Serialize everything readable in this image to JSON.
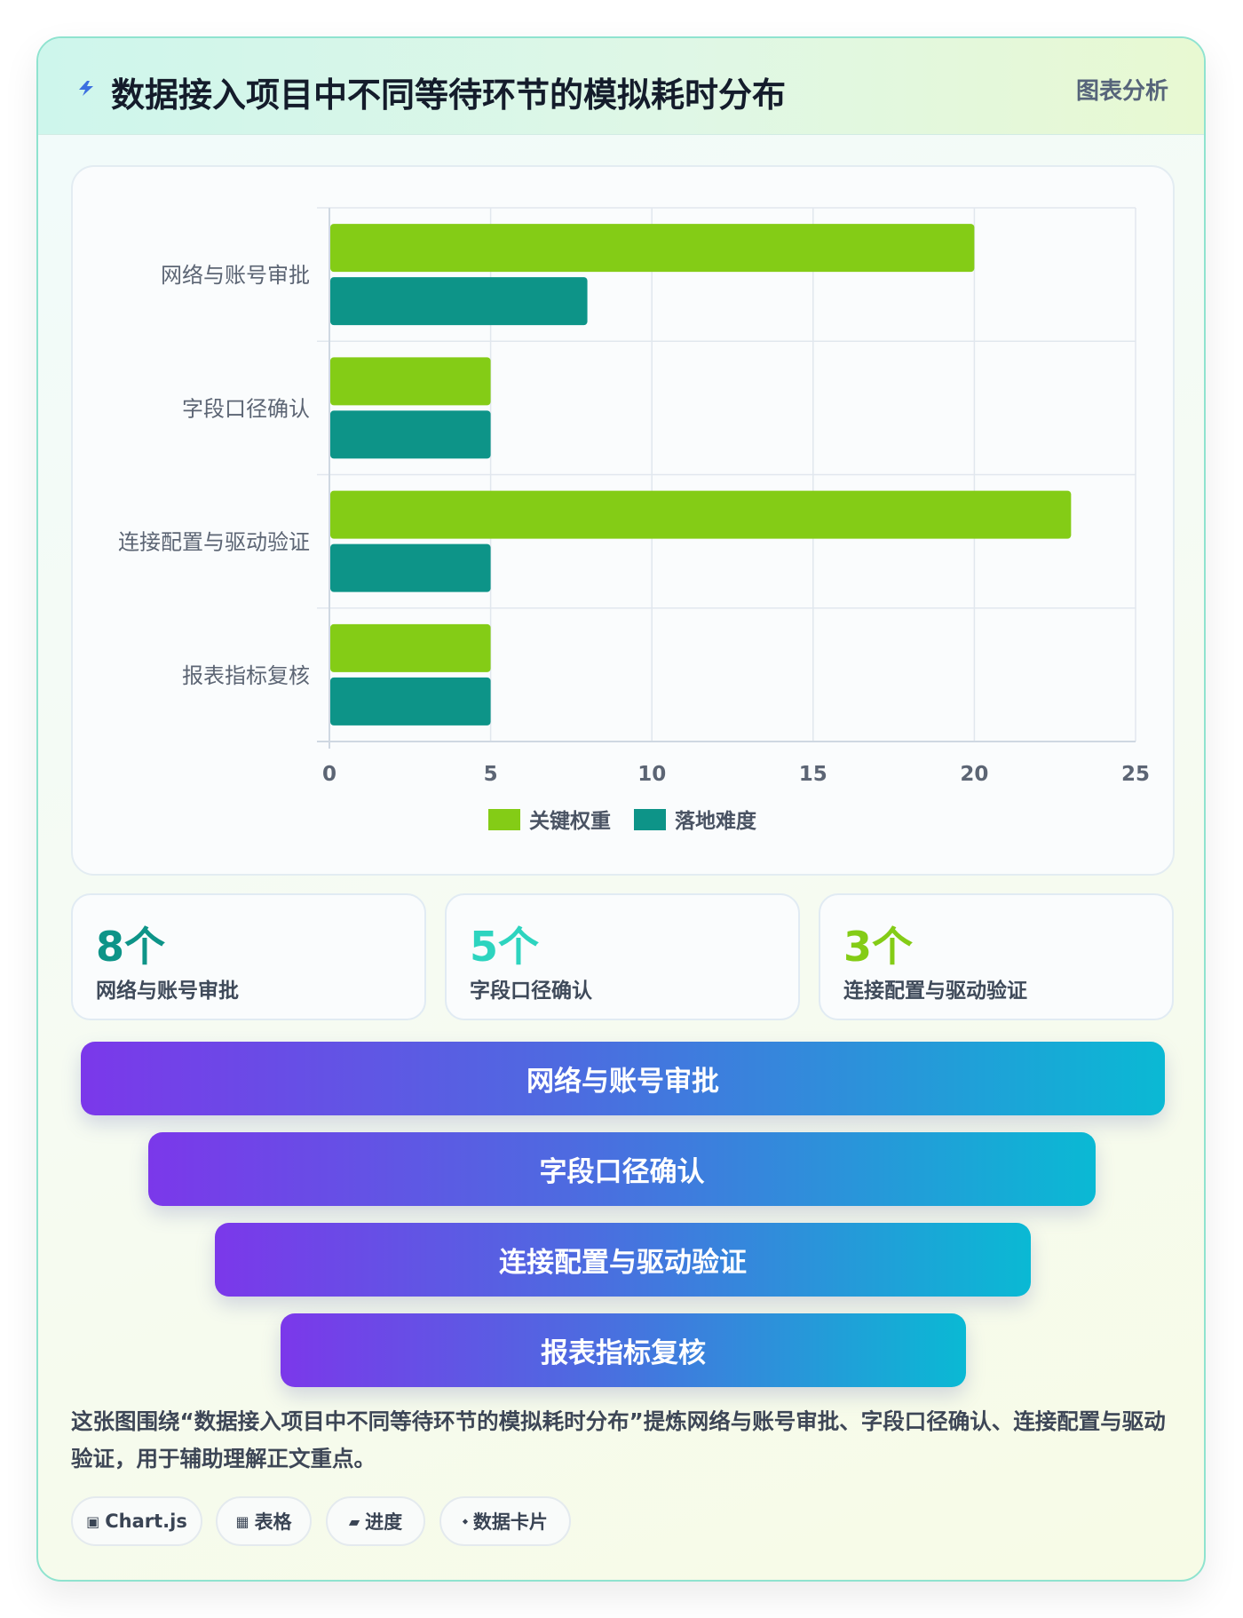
{
  "header": {
    "title": "数据接入项目中不同等待环节的模拟耗时分布",
    "tag": "图表分析"
  },
  "chart_data": {
    "type": "bar",
    "orientation": "horizontal",
    "categories": [
      "网络与账号审批",
      "字段口径确认",
      "连接配置与驱动验证",
      "报表指标复核"
    ],
    "series": [
      {
        "name": "关键权重",
        "values": [
          20,
          5,
          23,
          5
        ],
        "color": "#84cc16"
      },
      {
        "name": "落地难度",
        "values": [
          8,
          5,
          5,
          5
        ],
        "color": "#0d9488"
      }
    ],
    "xlim": [
      0,
      25
    ],
    "x_ticks": [
      "0",
      "5",
      "10",
      "15",
      "20",
      "25"
    ],
    "grid": true,
    "legend": "bottom"
  },
  "stats": [
    {
      "value": "8个",
      "label": "网络与账号审批",
      "color": "#0d9488"
    },
    {
      "value": "5个",
      "label": "字段口径确认",
      "color": "#2dd4bf"
    },
    {
      "value": "3个",
      "label": "连接配置与驱动验证",
      "color": "#84cc16"
    }
  ],
  "funnel": [
    {
      "label": "网络与账号审批"
    },
    {
      "label": "字段口径确认"
    },
    {
      "label": "连接配置与驱动验证"
    },
    {
      "label": "报表指标复核"
    }
  ],
  "summary": "这张图围绕“数据接入项目中不同等待环节的模拟耗时分布”提炼网络与账号审批、字段口径确认、连接配置与驱动验证，用于辅助理解正文重点。",
  "chips": [
    {
      "icon": "▣",
      "icon_name": "chart-square-icon",
      "label": "Chart.js"
    },
    {
      "icon": "▦",
      "icon_name": "table-grid-icon",
      "label": "表格"
    },
    {
      "icon": "▰",
      "icon_name": "progress-icon",
      "label": "进度"
    },
    {
      "icon": "⬩",
      "icon_name": "diamond-icon",
      "label": "数据卡片"
    }
  ]
}
